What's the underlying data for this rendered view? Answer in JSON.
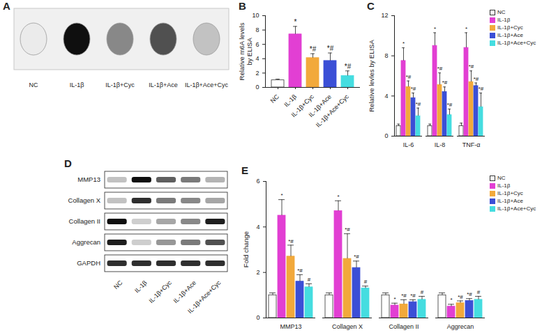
{
  "chart_data": [
    {
      "type": "bar",
      "panel": "B",
      "ylabel": [
        "Relative m6A levels",
        "by ELISA"
      ],
      "categories": [
        "NC",
        "IL-1β",
        "IL-1β+Cyc",
        "IL-1β+Ace",
        "IL-1β+Ace+Cyc"
      ],
      "values": [
        1.0,
        7.4,
        4.1,
        3.7,
        1.6
      ],
      "errors": [
        0.15,
        1.1,
        0.6,
        1.1,
        0.7
      ],
      "significance": [
        null,
        "*",
        "*#",
        "*#",
        "*#"
      ],
      "colors": [
        "#ffffff",
        "#e23fd3",
        "#f2a93b",
        "#3b4fd6",
        "#45dde0"
      ],
      "ylim": [
        0,
        10
      ],
      "yticks": [
        0,
        2,
        4,
        6,
        8,
        10
      ],
      "grid": false
    },
    {
      "type": "bar",
      "panel": "C",
      "ylabel": [
        "Relative levles by ELISA"
      ],
      "categories": [
        "IL-6",
        "IL-8",
        "TNF-α"
      ],
      "series": [
        {
          "name": "NC",
          "color": "#ffffff",
          "values": [
            1.0,
            1.0,
            1.0
          ],
          "errors": [
            0.2,
            0.2,
            0.3
          ],
          "significance": [
            null,
            null,
            null
          ]
        },
        {
          "name": "IL-1β",
          "color": "#e23fd3",
          "values": [
            7.5,
            9.0,
            8.8
          ],
          "errors": [
            1.3,
            1.3,
            1.5
          ],
          "significance": [
            "*",
            "*",
            "*"
          ]
        },
        {
          "name": "IL-1β+Cyc",
          "color": "#f2a93b",
          "values": [
            4.9,
            5.1,
            5.4
          ],
          "errors": [
            0.6,
            1.2,
            1.1
          ],
          "significance": [
            "*#",
            "*#",
            "*#"
          ]
        },
        {
          "name": "IL-1β+Ace",
          "color": "#3b4fd6",
          "values": [
            3.8,
            4.4,
            5.0
          ],
          "errors": [
            0.5,
            0.5,
            0.3
          ],
          "significance": [
            "*#",
            "*#",
            "*#"
          ]
        },
        {
          "name": "IL-1β+Ace+Cyc",
          "color": "#45dde0",
          "values": [
            2.0,
            2.1,
            2.9
          ],
          "errors": [
            0.8,
            0.6,
            1.4
          ],
          "significance": [
            "*#",
            "*#",
            "*#"
          ]
        }
      ],
      "ylim": [
        0,
        12
      ],
      "yticks": [
        0,
        4,
        8,
        12
      ],
      "grid": false,
      "legend": "top-right"
    },
    {
      "type": "bar",
      "panel": "E",
      "ylabel": [
        "Fold change"
      ],
      "categories": [
        "MMP13",
        "Collagen X",
        "Collagen II",
        "Aggrecan"
      ],
      "series": [
        {
          "name": "NC",
          "color": "#ffffff",
          "values": [
            1.0,
            1.0,
            1.0,
            1.0
          ],
          "errors": [
            0.1,
            0.1,
            0.1,
            0.1
          ],
          "significance": [
            null,
            null,
            null,
            null
          ]
        },
        {
          "name": "IL-1β",
          "color": "#e23fd3",
          "values": [
            4.5,
            4.7,
            0.55,
            0.5
          ],
          "errors": [
            0.7,
            0.45,
            0.1,
            0.1
          ],
          "significance": [
            "*",
            "*",
            "*",
            "*"
          ]
        },
        {
          "name": "IL-1β+Cyc",
          "color": "#f2a93b",
          "values": [
            2.7,
            2.6,
            0.6,
            0.65
          ],
          "errors": [
            0.5,
            1.1,
            0.2,
            0.1
          ],
          "significance": [
            "*#",
            "*#",
            "*#",
            "*#"
          ]
        },
        {
          "name": "IL-1β+Ace",
          "color": "#3b4fd6",
          "values": [
            1.6,
            2.2,
            0.7,
            0.75
          ],
          "errors": [
            0.3,
            0.3,
            0.1,
            0.1
          ],
          "significance": [
            "*#",
            "*#",
            "*#",
            "*#"
          ]
        },
        {
          "name": "IL-1β+Ace+Cyc",
          "color": "#45dde0",
          "values": [
            1.35,
            1.3,
            0.8,
            0.8
          ],
          "errors": [
            0.15,
            0.1,
            0.15,
            0.15
          ],
          "significance": [
            "#",
            "#",
            "#",
            "#"
          ]
        }
      ],
      "ylim": [
        0,
        6
      ],
      "yticks": [
        0,
        2,
        4,
        6
      ],
      "grid": false,
      "legend": "top-right"
    }
  ],
  "blots": [
    {
      "panel": "A",
      "lanes": [
        "NC",
        "IL-1β",
        "IL-1β+Cyc",
        "IL-1β+Ace",
        "IL-1β+Ace+Cyc"
      ],
      "intensity": [
        0.15,
        0.95,
        0.55,
        0.75,
        0.35
      ]
    },
    {
      "panel": "D",
      "lanes": [
        "NC",
        "IL-1β",
        "IL-1β+Cyc",
        "IL-1β+Ace",
        "IL-1β+Ace+Cyc"
      ],
      "rows": [
        {
          "label": "MMP13",
          "intensity": [
            0.35,
            0.95,
            0.7,
            0.6,
            0.4
          ]
        },
        {
          "label": "Collagen X",
          "intensity": [
            0.35,
            0.85,
            0.6,
            0.55,
            0.45
          ]
        },
        {
          "label": "Collagen II",
          "intensity": [
            0.95,
            0.3,
            0.45,
            0.55,
            0.9
          ]
        },
        {
          "label": "Aggrecan",
          "intensity": [
            0.9,
            0.3,
            0.5,
            0.6,
            0.75
          ]
        },
        {
          "label": "GAPDH",
          "intensity": [
            0.85,
            0.85,
            0.85,
            0.85,
            0.85
          ]
        }
      ]
    }
  ]
}
